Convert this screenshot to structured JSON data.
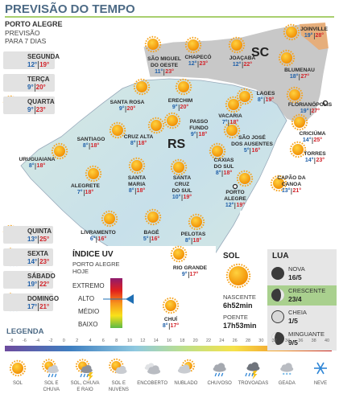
{
  "header": {
    "title": "PREVISÃO DO TEMPO"
  },
  "capital": {
    "name": "PORTO ALEGRE",
    "subtitle": [
      "PREVISÃO",
      "PARA 7 DIAS"
    ],
    "days": [
      {
        "day": "SEGUNDA",
        "min": "12°",
        "max": "19°"
      },
      {
        "day": "TERÇA",
        "min": "9°",
        "max": "20°"
      },
      {
        "day": "QUARTA",
        "min": "9°",
        "max": "23°"
      },
      {
        "day": "QUINTA",
        "min": "13°",
        "max": "25°"
      },
      {
        "day": "SEXTA",
        "min": "14°",
        "max": "23°"
      },
      {
        "day": "SÁBADO",
        "min": "19°",
        "max": "22°"
      },
      {
        "day": "DOMINGO",
        "min": "17°",
        "max": "21°"
      }
    ]
  },
  "map": {
    "labels": [
      "SC",
      "RS"
    ],
    "cities": [
      {
        "name": [
          "JOINVILLE"
        ],
        "min": "19°",
        "max": "28°"
      },
      {
        "name": [
          "SÃO MIGUEL",
          "DO OESTE"
        ],
        "min": "11°",
        "max": "23°"
      },
      {
        "name": [
          "CHAPECÓ"
        ],
        "min": "12°",
        "max": "23°"
      },
      {
        "name": [
          "JOAÇABA"
        ],
        "min": "12°",
        "max": "22°"
      },
      {
        "name": [
          "BLUMENAU"
        ],
        "min": "18°",
        "max": "27°"
      },
      {
        "name": [
          "LAGES"
        ],
        "min": "8°",
        "max": "19°"
      },
      {
        "name": [
          "FLORIANÓPOLIS"
        ],
        "min": "19°",
        "max": "27°"
      },
      {
        "name": [
          "SANTA ROSA"
        ],
        "min": "9°",
        "max": "20°"
      },
      {
        "name": [
          "ERECHIM"
        ],
        "min": "9°",
        "max": "20°"
      },
      {
        "name": [
          "PASSO",
          "FUNDO"
        ],
        "min": "9°",
        "max": "18°"
      },
      {
        "name": [
          "VACARIA"
        ],
        "min": "7°",
        "max": "18°"
      },
      {
        "name": [
          "CRICIÚMA"
        ],
        "min": "14°",
        "max": "25°"
      },
      {
        "name": [
          "SANTIAGO"
        ],
        "min": "8°",
        "max": "18°"
      },
      {
        "name": [
          "CRUZ ALTA"
        ],
        "min": "8°",
        "max": "18°"
      },
      {
        "name": [
          "SÃO JOSÉ",
          "DOS AUSENTES"
        ],
        "min": "5°",
        "max": "16°"
      },
      {
        "name": [
          "TORRES"
        ],
        "min": "14°",
        "max": "23°"
      },
      {
        "name": [
          "URUGUAIANA"
        ],
        "min": "8°",
        "max": "18°"
      },
      {
        "name": [
          "ALEGRETE"
        ],
        "min": "7°",
        "max": "18°"
      },
      {
        "name": [
          "SANTA",
          "MARIA"
        ],
        "min": "8°",
        "max": "18°"
      },
      {
        "name": [
          "SANTA",
          "CRUZ",
          "DO SUL"
        ],
        "min": "10°",
        "max": "19°"
      },
      {
        "name": [
          "CAXIAS",
          "DO SUL"
        ],
        "min": "8°",
        "max": "18°"
      },
      {
        "name": [
          "CAPÃO DA",
          "CANOA"
        ],
        "min": "13°",
        "max": "21°"
      },
      {
        "name": [
          "PORTO",
          "ALEGRE"
        ],
        "min": "12°",
        "max": "19°"
      },
      {
        "name": [
          "LIVRAMENTO"
        ],
        "min": "6°",
        "max": "16°"
      },
      {
        "name": [
          "BAGÉ"
        ],
        "min": "5°",
        "max": "16°"
      },
      {
        "name": [
          "PELOTAS"
        ],
        "min": "8°",
        "max": "18°"
      },
      {
        "name": [
          "RIO GRANDE"
        ],
        "min": "9°",
        "max": "17°"
      },
      {
        "name": [
          "CHUÍ"
        ],
        "min": "8°",
        "max": "17°"
      }
    ]
  },
  "uv": {
    "title": "ÍNDICE UV",
    "subtitle": [
      "PORTO ALEGRE",
      "HOJE"
    ],
    "levels": [
      "EXTREMO",
      "ALTO",
      "MÉDIO",
      "BAIXO"
    ]
  },
  "sun": {
    "title": "SOL",
    "sunrise_label": "NASCENTE",
    "sunrise": "6h52min",
    "sunset_label": "POENTE",
    "sunset": "17h53min"
  },
  "moon": {
    "title": "LUA",
    "phases": [
      {
        "name": "NOVA",
        "date": "16/5"
      },
      {
        "name": "CRESCENTE",
        "date": "23/4"
      },
      {
        "name": "CHEIA",
        "date": "1/5"
      },
      {
        "name": "MINGUANTE",
        "date": "9/5"
      }
    ]
  },
  "legend": {
    "title": "LEGENDA",
    "scale": [
      -8,
      -6,
      -4,
      -2,
      0,
      2,
      4,
      6,
      8,
      10,
      12,
      14,
      16,
      18,
      20,
      22,
      24,
      26,
      28,
      30,
      32,
      34,
      36,
      38,
      40
    ],
    "icons": [
      [
        "SOL"
      ],
      [
        "SOL E",
        "CHUVA"
      ],
      [
        "SOL, CHUVA",
        "E RAIO"
      ],
      [
        "SOL E",
        "NUVENS"
      ],
      [
        "ENCOBERTO"
      ],
      [
        "NUBLADO"
      ],
      [
        "CHUVOSO"
      ],
      [
        "TROVOADAS"
      ],
      [
        "GEADA"
      ],
      [
        "NEVE"
      ]
    ]
  }
}
